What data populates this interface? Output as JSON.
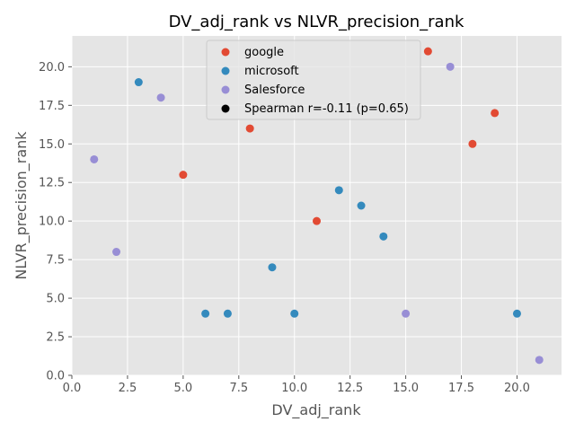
{
  "chart_data": {
    "type": "scatter",
    "title": "DV_adj_rank vs NLVR_precision_rank",
    "xlabel": "DV_adj_rank",
    "ylabel": "NLVR_precision_rank",
    "xlim": [
      0,
      22
    ],
    "ylim": [
      0,
      22
    ],
    "xticks": [
      "0.0",
      "2.5",
      "5.0",
      "7.5",
      "10.0",
      "12.5",
      "15.0",
      "17.5",
      "20.0"
    ],
    "yticks": [
      "0.0",
      "2.5",
      "5.0",
      "7.5",
      "10.0",
      "12.5",
      "15.0",
      "17.5",
      "20.0"
    ],
    "grid": true,
    "legend_position": "top-center",
    "series": [
      {
        "name": "google",
        "color": "#E24A33",
        "points": [
          [
            5,
            13
          ],
          [
            8,
            16
          ],
          [
            11,
            10
          ],
          [
            16,
            21
          ],
          [
            18,
            15
          ],
          [
            19,
            17
          ]
        ]
      },
      {
        "name": "microsoft",
        "color": "#348ABD",
        "points": [
          [
            3,
            19
          ],
          [
            6,
            4
          ],
          [
            7,
            4
          ],
          [
            9,
            7
          ],
          [
            10,
            4
          ],
          [
            12,
            12
          ],
          [
            13,
            11
          ],
          [
            14,
            9
          ],
          [
            20,
            4
          ]
        ]
      },
      {
        "name": "Salesforce",
        "color": "#988ED5",
        "points": [
          [
            1,
            14
          ],
          [
            2,
            8
          ],
          [
            4,
            18
          ],
          [
            15,
            4
          ],
          [
            17,
            20
          ],
          [
            21,
            1
          ]
        ]
      }
    ],
    "annotation": {
      "label": "Spearman r=-0.11 (p=0.65)",
      "color": "#000000"
    },
    "background": "#E5E5E5",
    "grid_color": "#FFFFFF"
  }
}
